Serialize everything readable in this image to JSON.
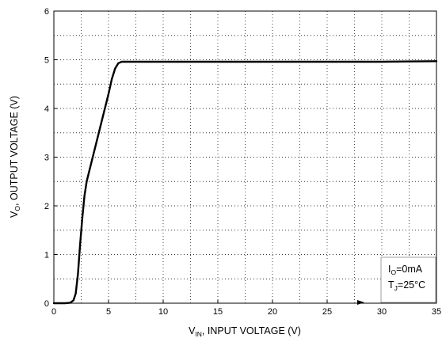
{
  "chart_data": {
    "type": "line",
    "xlabel": {
      "main": "V",
      "sub": "IN",
      "rest": ", INPUT VOLTAGE  (V)"
    },
    "ylabel": {
      "main": "V",
      "sub": "O",
      "rest": ", OUTPUT VOLTAGE (V)"
    },
    "xlim": [
      0,
      35
    ],
    "ylim": [
      0,
      6
    ],
    "x_ticks": [
      "0",
      "5",
      "10",
      "15",
      "20",
      "25",
      "30",
      "35"
    ],
    "y_ticks": [
      "0",
      "1",
      "2",
      "3",
      "4",
      "5",
      "6"
    ],
    "grid": "dotted, minor every 2.5 V and 0.5 V",
    "annotations": [
      {
        "main": "I",
        "sub": "O",
        "rest": "=0mA"
      },
      {
        "main": "T",
        "sub": "J",
        "rest": "=25°C"
      }
    ],
    "series": [
      {
        "x": [
          0,
          1.0,
          1.5,
          1.8,
          2.0,
          2.2,
          2.4,
          2.6,
          2.8,
          3.0,
          3.5,
          4.0,
          4.5,
          5.0,
          5.3,
          5.6,
          5.9,
          6.2,
          6.5,
          7,
          10,
          15,
          20,
          25,
          30,
          35
        ],
        "y": [
          0,
          0,
          0.01,
          0.06,
          0.2,
          0.6,
          1.2,
          1.75,
          2.2,
          2.5,
          2.95,
          3.4,
          3.85,
          4.3,
          4.6,
          4.82,
          4.93,
          4.96,
          4.96,
          4.96,
          4.96,
          4.96,
          4.96,
          4.96,
          4.96,
          4.97
        ]
      }
    ]
  }
}
